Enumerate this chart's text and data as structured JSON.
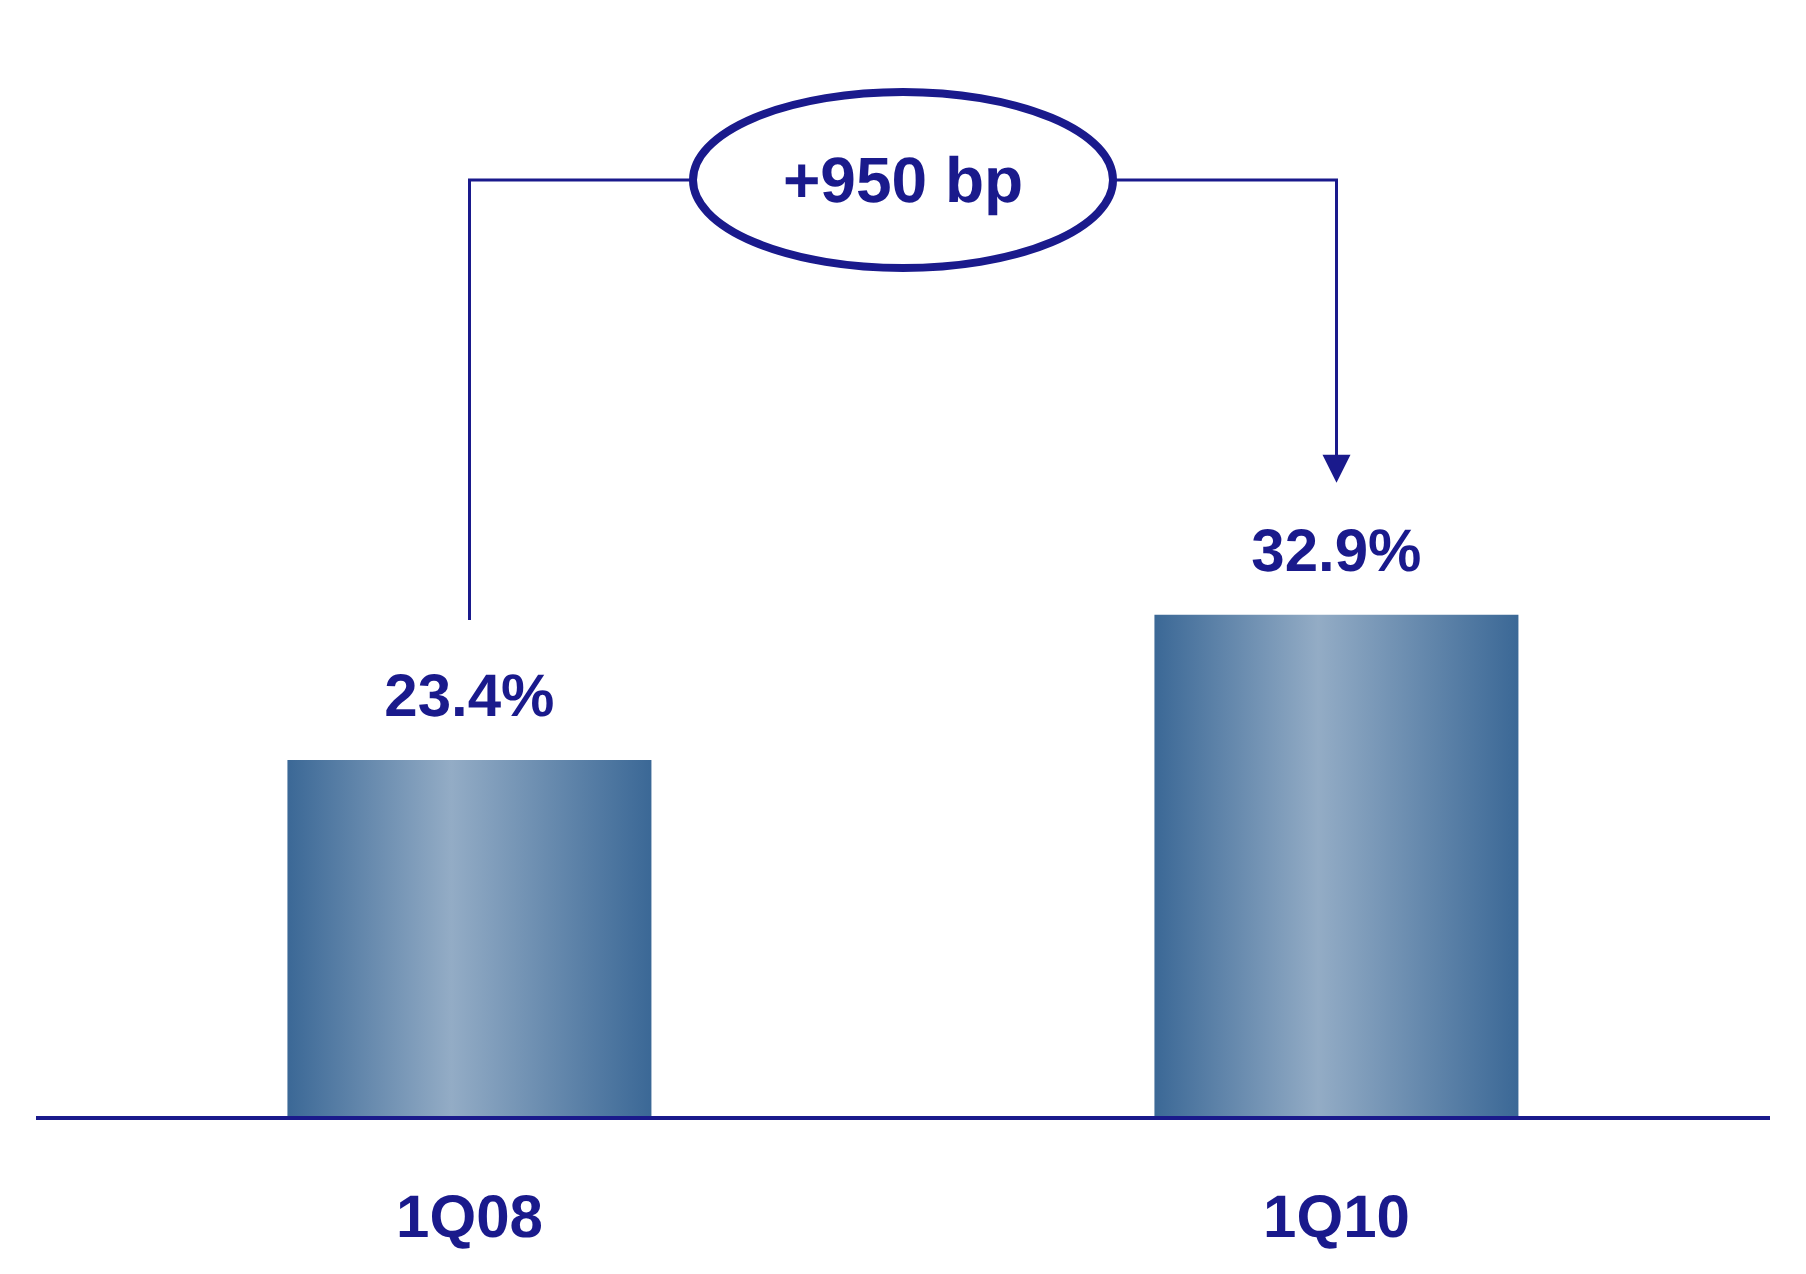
{
  "chart_data": {
    "type": "bar",
    "categories": [
      "1Q08",
      "1Q10"
    ],
    "values": [
      23.4,
      32.9
    ],
    "value_labels": [
      "23.4%",
      "32.9%"
    ],
    "color": "#3b6896",
    "annotations": [
      "+950 bp"
    ]
  }
}
